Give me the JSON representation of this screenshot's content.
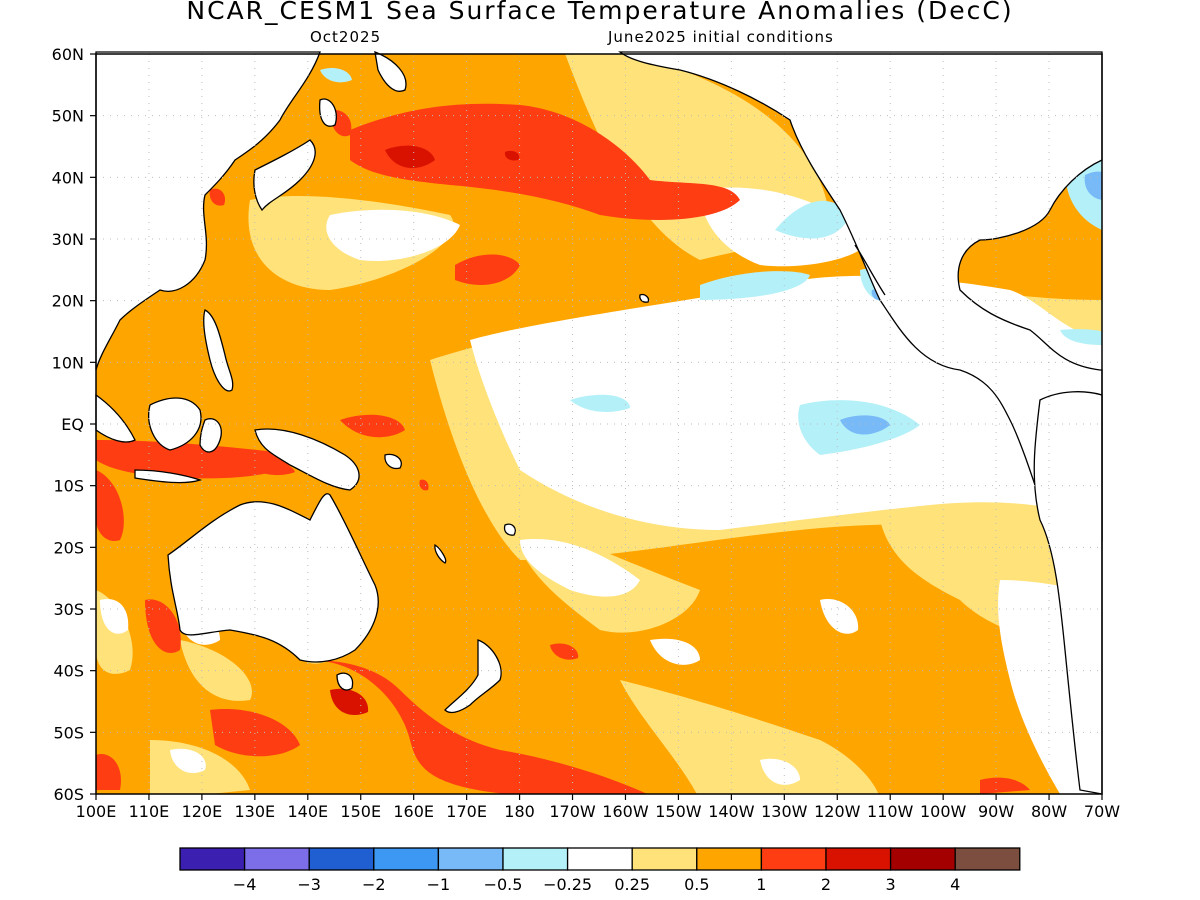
{
  "title": "NCAR_CESM1 Sea Surface Temperature Anomalies (DecC)",
  "subtitle_left": "Oct2025",
  "subtitle_right": "June2025 initial conditions",
  "map": {
    "lat_labels": [
      "60N",
      "50N",
      "40N",
      "30N",
      "20N",
      "10N",
      "EQ",
      "10S",
      "20S",
      "30S",
      "40S",
      "50S",
      "60S"
    ],
    "lon_labels": [
      "100E",
      "110E",
      "120E",
      "130E",
      "140E",
      "150E",
      "160E",
      "170E",
      "180",
      "170W",
      "160W",
      "150W",
      "140W",
      "130W",
      "120W",
      "110W",
      "100W",
      "90W",
      "80W",
      "70W"
    ],
    "grid": "dotted",
    "colors": {
      "ocean_neutral": "#ffffff",
      "coast": "#000000",
      "grid_dots": "#bdbdbd"
    }
  },
  "colorbar": {
    "colors": [
      "#3a1fb0",
      "#7b6ee8",
      "#1f5fd1",
      "#3c98f2",
      "#78baf7",
      "#b4f0f8",
      "#ffffff",
      "#ffe27a",
      "#ffa500",
      "#ff3d12",
      "#d91200",
      "#a50000",
      "#7b4e3f"
    ],
    "tick_labels": [
      "−4",
      "−3",
      "−2",
      "−1",
      "−0.5",
      "−0.25",
      "0.25",
      "0.5",
      "1",
      "2",
      "3",
      "4"
    ]
  }
}
